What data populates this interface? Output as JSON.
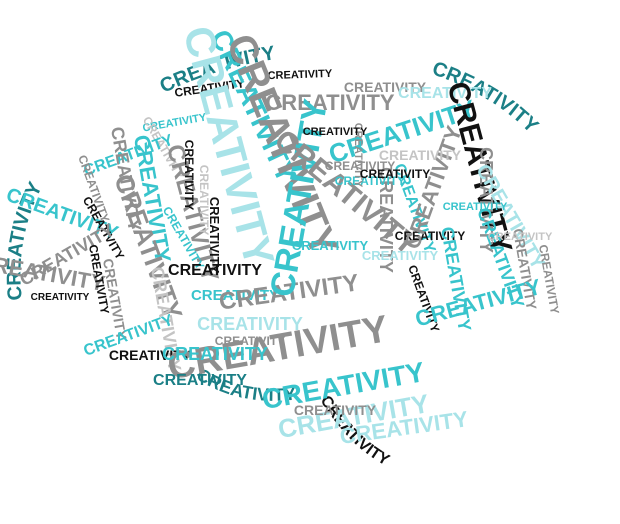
{
  "word": "CREATIVITY",
  "colors": {
    "teal": "#1b7f86",
    "aqua": "#38c4cc",
    "light_aqua": "#a8e3e8",
    "gray": "#8f8f8f",
    "light_gray": "#c4c4c4",
    "black": "#111111",
    "background": "#ffffff"
  }
}
